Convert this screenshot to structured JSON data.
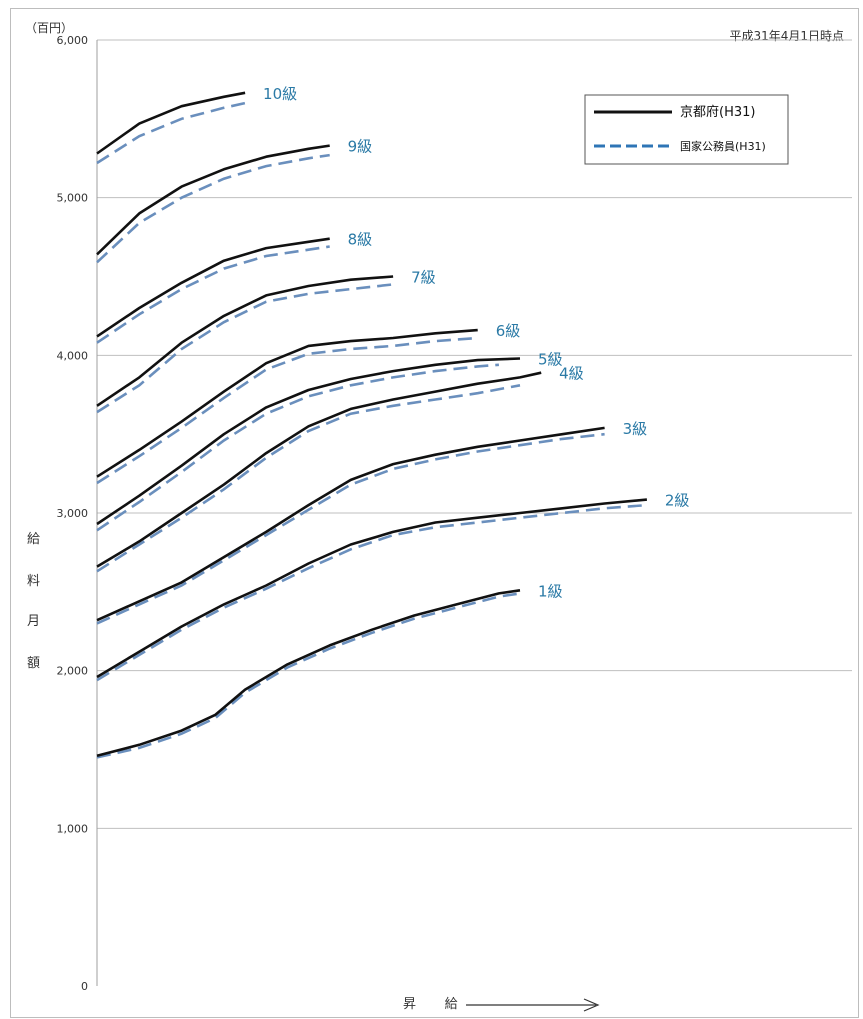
{
  "header": {
    "unit_label": "（百円）",
    "date_label": "平成31年4月1日時点"
  },
  "axis": {
    "xlabel": "昇　給",
    "ylabel_chars": [
      "給",
      "料",
      "月",
      "額"
    ]
  },
  "chart_data": {
    "type": "line",
    "title": "",
    "xlabel": "昇　給",
    "ylabel": "給料月額",
    "ylim": [
      0,
      6000
    ],
    "yticks": [
      "0",
      "1,000",
      "2,000",
      "3,000",
      "4,000",
      "5,000",
      "6,000"
    ],
    "grid": true,
    "legend_position": "top-right",
    "legend": [
      {
        "name": "京都府(H31)",
        "style": "solid",
        "color": "#000000"
      },
      {
        "name": "国家公務員(H31)",
        "style": "dashed",
        "color": "#2e75b6"
      }
    ],
    "series_colors": {
      "kyoto": "#111111",
      "national": "#6a8fbd",
      "grade_label": "#2b7aa6"
    },
    "grades": [
      {
        "label": "1級",
        "kyoto": [
          [
            0,
            1460
          ],
          [
            10,
            1530
          ],
          [
            20,
            1620
          ],
          [
            28,
            1720
          ],
          [
            35,
            1880
          ],
          [
            45,
            2040
          ],
          [
            55,
            2160
          ],
          [
            65,
            2260
          ],
          [
            75,
            2350
          ],
          [
            85,
            2420
          ],
          [
            95,
            2490
          ],
          [
            100,
            2510
          ]
        ],
        "national": [
          [
            0,
            1450
          ],
          [
            10,
            1510
          ],
          [
            20,
            1600
          ],
          [
            28,
            1700
          ],
          [
            35,
            1860
          ],
          [
            45,
            2020
          ],
          [
            55,
            2140
          ],
          [
            65,
            2240
          ],
          [
            75,
            2330
          ],
          [
            85,
            2400
          ],
          [
            95,
            2470
          ],
          [
            100,
            2490
          ]
        ]
      },
      {
        "label": "2級",
        "kyoto": [
          [
            0,
            1960
          ],
          [
            10,
            2120
          ],
          [
            20,
            2280
          ],
          [
            30,
            2420
          ],
          [
            40,
            2540
          ],
          [
            50,
            2680
          ],
          [
            60,
            2800
          ],
          [
            70,
            2880
          ],
          [
            80,
            2940
          ],
          [
            90,
            2970
          ],
          [
            100,
            3000
          ],
          [
            110,
            3030
          ],
          [
            120,
            3060
          ],
          [
            130,
            3085
          ]
        ],
        "national": [
          [
            0,
            1940
          ],
          [
            10,
            2100
          ],
          [
            20,
            2260
          ],
          [
            30,
            2400
          ],
          [
            40,
            2520
          ],
          [
            50,
            2650
          ],
          [
            60,
            2770
          ],
          [
            70,
            2860
          ],
          [
            80,
            2910
          ],
          [
            90,
            2940
          ],
          [
            100,
            2970
          ],
          [
            110,
            3000
          ],
          [
            120,
            3030
          ],
          [
            130,
            3050
          ]
        ]
      },
      {
        "label": "3級",
        "kyoto": [
          [
            0,
            2320
          ],
          [
            10,
            2440
          ],
          [
            20,
            2560
          ],
          [
            30,
            2720
          ],
          [
            40,
            2880
          ],
          [
            50,
            3050
          ],
          [
            60,
            3210
          ],
          [
            70,
            3310
          ],
          [
            80,
            3370
          ],
          [
            90,
            3420
          ],
          [
            100,
            3460
          ],
          [
            110,
            3500
          ],
          [
            120,
            3540
          ]
        ],
        "national": [
          [
            0,
            2300
          ],
          [
            10,
            2420
          ],
          [
            20,
            2540
          ],
          [
            30,
            2700
          ],
          [
            40,
            2860
          ],
          [
            50,
            3020
          ],
          [
            60,
            3180
          ],
          [
            70,
            3280
          ],
          [
            80,
            3340
          ],
          [
            90,
            3390
          ],
          [
            100,
            3430
          ],
          [
            110,
            3470
          ],
          [
            120,
            3500
          ]
        ]
      },
      {
        "label": "4級",
        "kyoto": [
          [
            0,
            2660
          ],
          [
            10,
            2820
          ],
          [
            20,
            3000
          ],
          [
            30,
            3180
          ],
          [
            40,
            3380
          ],
          [
            50,
            3550
          ],
          [
            60,
            3660
          ],
          [
            70,
            3720
          ],
          [
            80,
            3770
          ],
          [
            90,
            3820
          ],
          [
            100,
            3860
          ],
          [
            105,
            3890
          ]
        ],
        "national": [
          [
            0,
            2630
          ],
          [
            10,
            2800
          ],
          [
            20,
            2970
          ],
          [
            30,
            3150
          ],
          [
            40,
            3350
          ],
          [
            50,
            3520
          ],
          [
            60,
            3630
          ],
          [
            70,
            3680
          ],
          [
            80,
            3720
          ],
          [
            90,
            3760
          ],
          [
            100,
            3810
          ]
        ]
      },
      {
        "label": "5級",
        "kyoto": [
          [
            0,
            2930
          ],
          [
            10,
            3110
          ],
          [
            20,
            3300
          ],
          [
            30,
            3500
          ],
          [
            40,
            3670
          ],
          [
            50,
            3780
          ],
          [
            60,
            3850
          ],
          [
            70,
            3900
          ],
          [
            80,
            3940
          ],
          [
            90,
            3970
          ],
          [
            100,
            3980
          ]
        ],
        "national": [
          [
            0,
            2890
          ],
          [
            10,
            3070
          ],
          [
            20,
            3260
          ],
          [
            30,
            3460
          ],
          [
            40,
            3630
          ],
          [
            50,
            3740
          ],
          [
            60,
            3810
          ],
          [
            70,
            3860
          ],
          [
            80,
            3900
          ],
          [
            90,
            3930
          ],
          [
            95,
            3940
          ]
        ]
      },
      {
        "label": "6級",
        "kyoto": [
          [
            0,
            3230
          ],
          [
            10,
            3400
          ],
          [
            20,
            3580
          ],
          [
            30,
            3770
          ],
          [
            40,
            3950
          ],
          [
            50,
            4060
          ],
          [
            60,
            4090
          ],
          [
            70,
            4110
          ],
          [
            80,
            4140
          ],
          [
            90,
            4160
          ]
        ],
        "national": [
          [
            0,
            3190
          ],
          [
            10,
            3360
          ],
          [
            20,
            3540
          ],
          [
            30,
            3730
          ],
          [
            40,
            3910
          ],
          [
            50,
            4010
          ],
          [
            60,
            4040
          ],
          [
            70,
            4060
          ],
          [
            80,
            4090
          ],
          [
            90,
            4110
          ]
        ]
      },
      {
        "label": "7級",
        "kyoto": [
          [
            0,
            3680
          ],
          [
            10,
            3860
          ],
          [
            20,
            4080
          ],
          [
            30,
            4250
          ],
          [
            40,
            4380
          ],
          [
            50,
            4440
          ],
          [
            60,
            4480
          ],
          [
            70,
            4500
          ]
        ],
        "national": [
          [
            0,
            3640
          ],
          [
            10,
            3810
          ],
          [
            20,
            4040
          ],
          [
            30,
            4210
          ],
          [
            40,
            4340
          ],
          [
            50,
            4390
          ],
          [
            60,
            4420
          ],
          [
            70,
            4450
          ]
        ]
      },
      {
        "label": "8級",
        "kyoto": [
          [
            0,
            4120
          ],
          [
            10,
            4300
          ],
          [
            20,
            4460
          ],
          [
            30,
            4600
          ],
          [
            40,
            4680
          ],
          [
            50,
            4720
          ],
          [
            55,
            4740
          ]
        ],
        "national": [
          [
            0,
            4080
          ],
          [
            10,
            4260
          ],
          [
            20,
            4420
          ],
          [
            30,
            4550
          ],
          [
            40,
            4630
          ],
          [
            50,
            4670
          ],
          [
            55,
            4690
          ]
        ]
      },
      {
        "label": "9級",
        "kyoto": [
          [
            0,
            4640
          ],
          [
            10,
            4900
          ],
          [
            20,
            5070
          ],
          [
            30,
            5180
          ],
          [
            40,
            5260
          ],
          [
            50,
            5310
          ],
          [
            55,
            5330
          ]
        ],
        "national": [
          [
            0,
            4590
          ],
          [
            10,
            4840
          ],
          [
            20,
            5000
          ],
          [
            30,
            5120
          ],
          [
            40,
            5200
          ],
          [
            50,
            5250
          ],
          [
            55,
            5270
          ]
        ]
      },
      {
        "label": "10級",
        "kyoto": [
          [
            0,
            5280
          ],
          [
            10,
            5470
          ],
          [
            20,
            5580
          ],
          [
            30,
            5640
          ],
          [
            35,
            5665
          ]
        ],
        "national": [
          [
            0,
            5220
          ],
          [
            10,
            5390
          ],
          [
            20,
            5500
          ],
          [
            30,
            5570
          ],
          [
            35,
            5600
          ]
        ]
      }
    ]
  }
}
